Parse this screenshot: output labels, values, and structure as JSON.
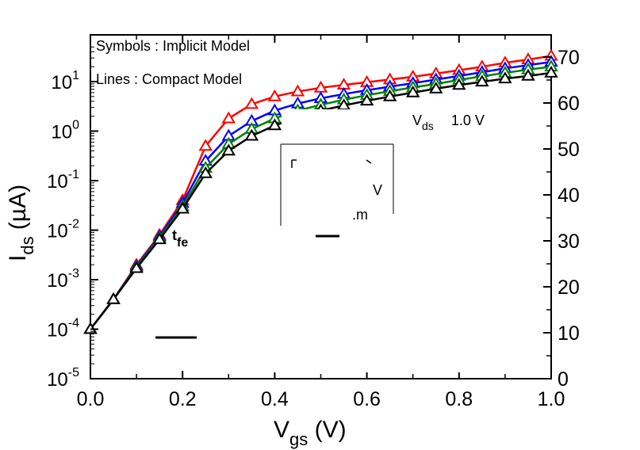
{
  "chart_data": {
    "type": "line",
    "xlabel": "V",
    "xlabel_sub": "gs",
    "xlabel_unit": " (V)",
    "ylabel": "I",
    "ylabel_sub": "ds",
    "ylabel_unit": " (µA)",
    "xlim": [
      0.0,
      1.0
    ],
    "ylim_left": [
      1e-05,
      50
    ],
    "yscale_left": "log",
    "ylim_right": [
      0,
      75
    ],
    "yscale_right": "linear",
    "x_ticks": [
      "0.0",
      "0.2",
      "0.4",
      "0.6",
      "0.8",
      "1.0"
    ],
    "y_left_ticks": [
      {
        "base": "10",
        "exp": "-5"
      },
      {
        "base": "10",
        "exp": "-4"
      },
      {
        "base": "10",
        "exp": "-3"
      },
      {
        "base": "10",
        "exp": "-2"
      },
      {
        "base": "10",
        "exp": "-1"
      },
      {
        "base": "10",
        "exp": "0"
      },
      {
        "base": "10",
        "exp": "1"
      }
    ],
    "y_right_ticks": [
      "0",
      "10",
      "20",
      "30",
      "40",
      "50",
      "60",
      "70"
    ],
    "annotations": {
      "symbols_label": "Symbols : Implicit Model",
      "lines_label": "Lines : Compact Model",
      "vds_fragment_main": "V",
      "vds_fragment_sub": "ds",
      "vds_fragment_value": "1.0 V",
      "tfe_main": "t",
      "tfe_sub": "fe",
      "legend_fragment_v": "V",
      "legend_fragment_m": ".m"
    },
    "x": [
      0.0,
      0.05,
      0.1,
      0.15,
      0.2,
      0.25,
      0.3,
      0.35,
      0.4,
      0.45,
      0.5,
      0.55,
      0.6,
      0.65,
      0.7,
      0.75,
      0.8,
      0.85,
      0.9,
      0.95,
      1.0
    ],
    "series": [
      {
        "color": "#ff0000",
        "values": [
          0.0001,
          0.0004,
          0.002,
          0.008,
          0.04,
          0.5,
          1.8,
          3.5,
          5.0,
          6.3,
          7.5,
          8.6,
          9.7,
          11.0,
          12.5,
          14.5,
          17.0,
          20.0,
          24.0,
          28.0,
          33.0
        ]
      },
      {
        "color": "#0000ff",
        "values": [
          0.0001,
          0.0004,
          0.0019,
          0.0075,
          0.035,
          0.25,
          0.8,
          1.6,
          2.6,
          3.6,
          4.6,
          5.6,
          6.7,
          7.9,
          9.3,
          11.0,
          13.0,
          15.5,
          18.5,
          21.5,
          25.0
        ]
      },
      {
        "color": "#008000",
        "values": [
          0.0001,
          0.0004,
          0.0018,
          0.007,
          0.03,
          0.18,
          0.55,
          1.1,
          1.8,
          2.6,
          3.4,
          4.3,
          5.3,
          6.4,
          7.6,
          9.0,
          10.8,
          12.8,
          15.0,
          17.5,
          20.0
        ]
      },
      {
        "color": "#000000",
        "values": [
          0.0001,
          0.0004,
          0.0017,
          0.0065,
          0.027,
          0.14,
          0.4,
          0.8,
          1.3,
          1.9,
          2.6,
          3.3,
          4.1,
          5.0,
          6.0,
          7.2,
          8.5,
          9.9,
          11.5,
          13.0,
          15.0
        ]
      }
    ],
    "grid": false,
    "legend": "none"
  }
}
